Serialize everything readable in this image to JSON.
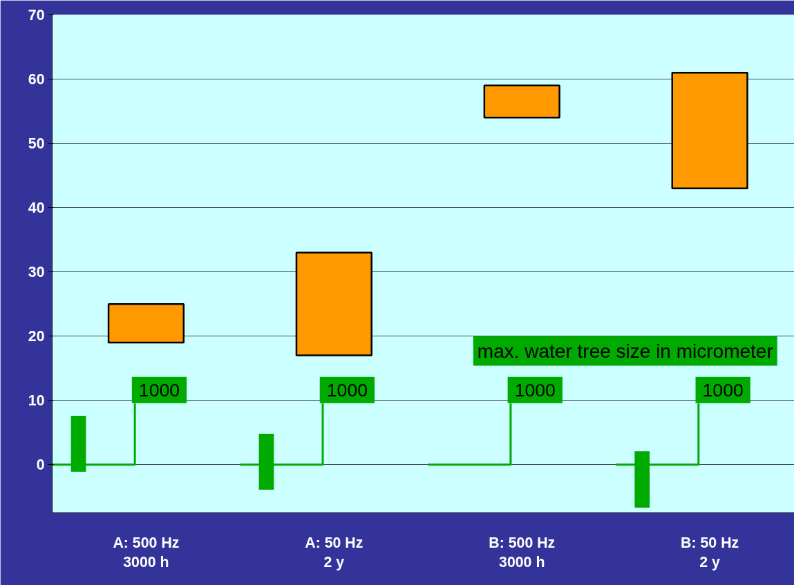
{
  "chart_data": {
    "type": "bar",
    "categories": [
      "A: 500 Hz\n3000 h",
      "A: 50 Hz\n2 y",
      "B: 500 Hz\n3000 h",
      "B: 50 Hz\n2 y"
    ],
    "series": [
      {
        "color": "#ff9900",
        "base": [
          19,
          17,
          54,
          43
        ],
        "values": [
          6,
          16,
          5,
          18
        ]
      },
      {
        "color": "#00aa00",
        "base": [
          -1.1,
          -3.9,
          null,
          -6.7
        ],
        "values": [
          8.7,
          8.7,
          null,
          8.8
        ]
      }
    ],
    "ylim": [
      -7.5,
      70
    ],
    "yticks": [
      0,
      10,
      20,
      30,
      40,
      50,
      60,
      70
    ],
    "grid": "y",
    "annotations": [
      "1000",
      "1000",
      "1000",
      "1000",
      "max. water tree size in micrometer"
    ]
  }
}
